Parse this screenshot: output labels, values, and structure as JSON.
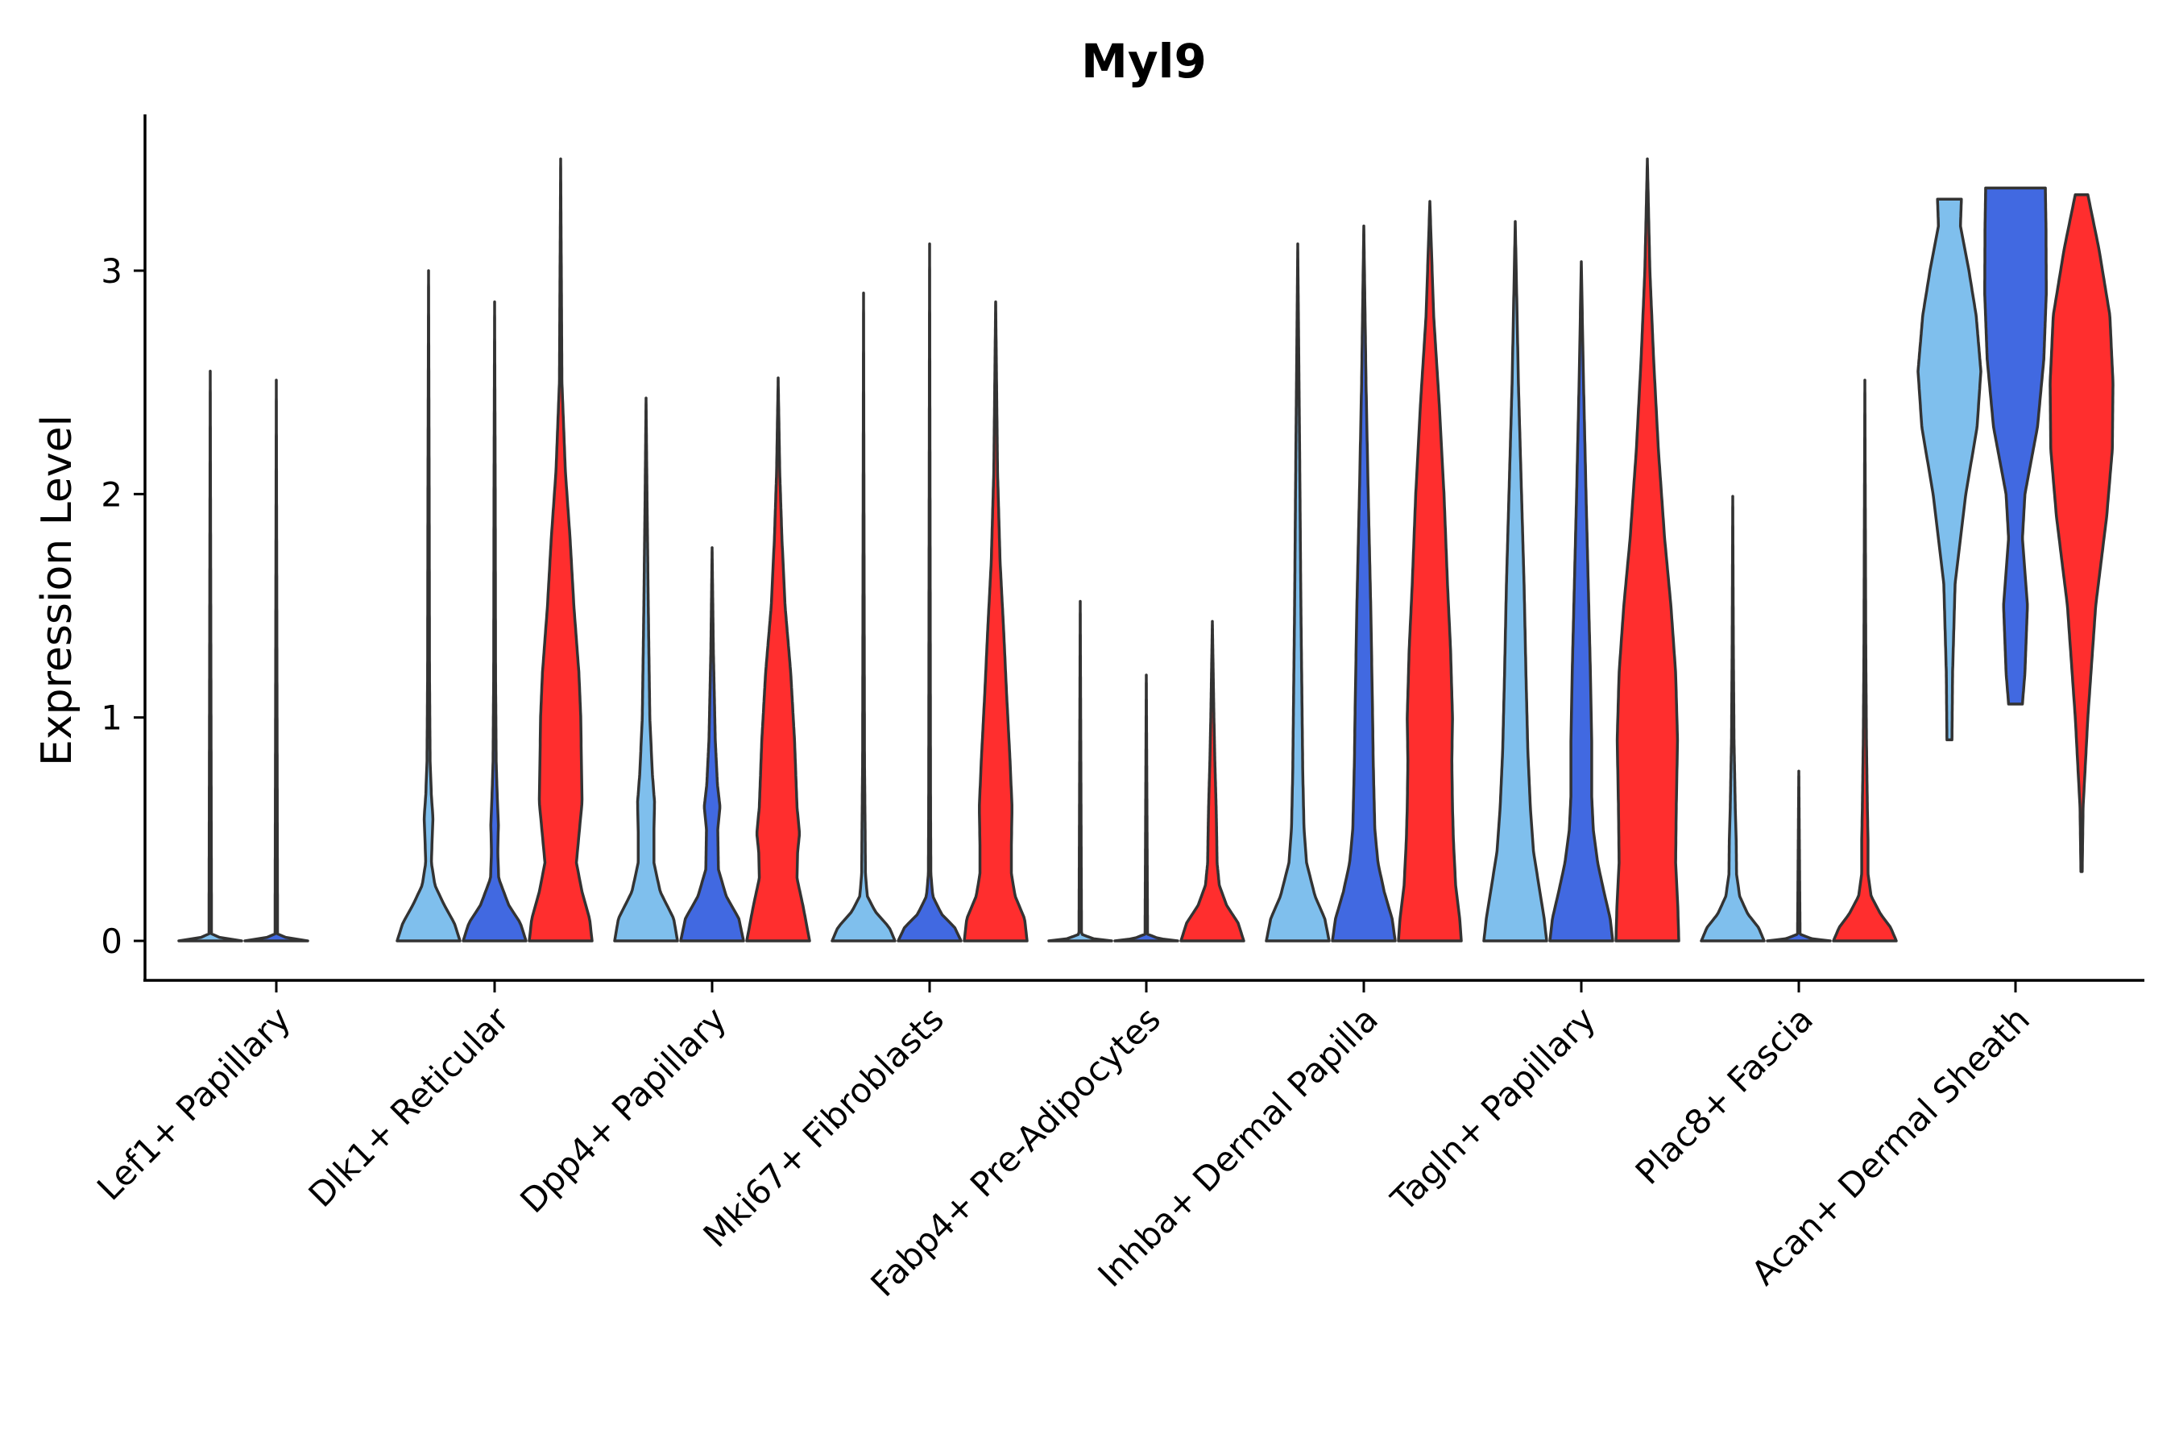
{
  "chart_data": {
    "type": "violin",
    "title": "Myl9",
    "xlabel": "",
    "ylabel": "Expression Level",
    "ylim": [
      -0.17,
      3.7
    ],
    "yticks": [
      0,
      1,
      2,
      3
    ],
    "legend": "none",
    "colors": {
      "group_a": "#7fbfed",
      "group_b": "#4169e1",
      "group_c": "#ff2e2e",
      "outline": "#333333"
    },
    "categories": [
      "Lef1+ Papillary",
      "Dlk1+ Reticular",
      "Dpp4+ Papillary",
      "Mki67+ Fibroblasts",
      "Fabp4+ Pre-Adipocytes",
      "Inhba+ Dermal Papilla",
      "Tagln+ Papillary",
      "Plac8+ Fascia",
      "Acan+ Dermal Sheath"
    ],
    "violins": [
      {
        "category": 0,
        "slot": 0,
        "color": "group_a",
        "min": 0,
        "max": 2.55,
        "profile": [
          [
            0,
            1
          ],
          [
            0.01,
            0.4
          ],
          [
            0.03,
            0.04
          ],
          [
            2.55,
            0
          ]
        ]
      },
      {
        "category": 0,
        "slot": 1,
        "color": "group_b",
        "min": 0,
        "max": 2.51,
        "profile": [
          [
            0,
            1
          ],
          [
            0.01,
            0.4
          ],
          [
            0.03,
            0.04
          ],
          [
            2.51,
            0
          ]
        ]
      },
      {
        "category": 1,
        "slot": 0,
        "color": "group_a",
        "min": 0,
        "max": 3.0,
        "profile": [
          [
            0,
            1
          ],
          [
            0.08,
            0.82
          ],
          [
            0.16,
            0.5
          ],
          [
            0.25,
            0.2
          ],
          [
            0.35,
            0.09
          ],
          [
            0.48,
            0.12
          ],
          [
            0.55,
            0.14
          ],
          [
            0.65,
            0.09
          ],
          [
            0.8,
            0.05
          ],
          [
            1.2,
            0.03
          ],
          [
            2.0,
            0.02
          ],
          [
            3.0,
            0
          ]
        ]
      },
      {
        "category": 1,
        "slot": 1,
        "color": "group_b",
        "min": 0,
        "max": 2.86,
        "profile": [
          [
            0,
            1
          ],
          [
            0.08,
            0.82
          ],
          [
            0.16,
            0.45
          ],
          [
            0.28,
            0.13
          ],
          [
            0.4,
            0.1
          ],
          [
            0.52,
            0.12
          ],
          [
            0.62,
            0.09
          ],
          [
            0.8,
            0.05
          ],
          [
            1.2,
            0.03
          ],
          [
            2.0,
            0.02
          ],
          [
            2.86,
            0
          ]
        ]
      },
      {
        "category": 1,
        "slot": 2,
        "color": "group_c",
        "min": 0,
        "max": 3.5,
        "profile": [
          [
            0,
            1
          ],
          [
            0.1,
            0.92
          ],
          [
            0.22,
            0.68
          ],
          [
            0.35,
            0.5
          ],
          [
            0.5,
            0.6
          ],
          [
            0.62,
            0.68
          ],
          [
            0.8,
            0.66
          ],
          [
            1.0,
            0.64
          ],
          [
            1.2,
            0.58
          ],
          [
            1.5,
            0.42
          ],
          [
            1.8,
            0.3
          ],
          [
            2.1,
            0.15
          ],
          [
            2.5,
            0.04
          ],
          [
            3.5,
            0
          ]
        ]
      },
      {
        "category": 2,
        "slot": 0,
        "color": "group_a",
        "min": 0,
        "max": 2.43,
        "profile": [
          [
            0,
            1
          ],
          [
            0.1,
            0.88
          ],
          [
            0.22,
            0.45
          ],
          [
            0.35,
            0.25
          ],
          [
            0.5,
            0.25
          ],
          [
            0.62,
            0.27
          ],
          [
            0.75,
            0.2
          ],
          [
            1.0,
            0.12
          ],
          [
            1.5,
            0.07
          ],
          [
            2.0,
            0.03
          ],
          [
            2.43,
            0
          ]
        ]
      },
      {
        "category": 2,
        "slot": 1,
        "color": "group_b",
        "min": 0,
        "max": 1.76,
        "profile": [
          [
            0,
            1
          ],
          [
            0.1,
            0.85
          ],
          [
            0.2,
            0.45
          ],
          [
            0.32,
            0.2
          ],
          [
            0.5,
            0.18
          ],
          [
            0.6,
            0.25
          ],
          [
            0.7,
            0.17
          ],
          [
            0.9,
            0.1
          ],
          [
            1.3,
            0.04
          ],
          [
            1.76,
            0
          ]
        ]
      },
      {
        "category": 2,
        "slot": 2,
        "color": "group_c",
        "min": 0,
        "max": 2.52,
        "profile": [
          [
            0,
            1
          ],
          [
            0.15,
            0.8
          ],
          [
            0.28,
            0.6
          ],
          [
            0.4,
            0.62
          ],
          [
            0.48,
            0.68
          ],
          [
            0.6,
            0.6
          ],
          [
            0.9,
            0.52
          ],
          [
            1.2,
            0.4
          ],
          [
            1.5,
            0.22
          ],
          [
            1.8,
            0.12
          ],
          [
            2.1,
            0.05
          ],
          [
            2.52,
            0
          ]
        ]
      },
      {
        "category": 3,
        "slot": 0,
        "color": "group_a",
        "min": 0,
        "max": 2.9,
        "profile": [
          [
            0,
            1
          ],
          [
            0.06,
            0.82
          ],
          [
            0.13,
            0.38
          ],
          [
            0.2,
            0.12
          ],
          [
            0.3,
            0.06
          ],
          [
            0.5,
            0.05
          ],
          [
            0.8,
            0.03
          ],
          [
            1.5,
            0.02
          ],
          [
            2.9,
            0
          ]
        ]
      },
      {
        "category": 3,
        "slot": 1,
        "color": "group_b",
        "min": 0,
        "max": 3.12,
        "profile": [
          [
            0,
            1
          ],
          [
            0.06,
            0.8
          ],
          [
            0.12,
            0.38
          ],
          [
            0.2,
            0.1
          ],
          [
            0.3,
            0.04
          ],
          [
            0.6,
            0.03
          ],
          [
            1.5,
            0.02
          ],
          [
            3.12,
            0
          ]
        ]
      },
      {
        "category": 3,
        "slot": 2,
        "color": "group_c",
        "min": 0,
        "max": 2.86,
        "profile": [
          [
            0,
            1
          ],
          [
            0.1,
            0.92
          ],
          [
            0.2,
            0.62
          ],
          [
            0.3,
            0.5
          ],
          [
            0.42,
            0.5
          ],
          [
            0.6,
            0.52
          ],
          [
            0.8,
            0.46
          ],
          [
            1.1,
            0.35
          ],
          [
            1.4,
            0.25
          ],
          [
            1.7,
            0.14
          ],
          [
            2.1,
            0.06
          ],
          [
            2.86,
            0
          ]
        ]
      },
      {
        "category": 4,
        "slot": 0,
        "color": "group_a",
        "min": 0,
        "max": 1.52,
        "profile": [
          [
            0,
            1
          ],
          [
            0.01,
            0.4
          ],
          [
            0.03,
            0.04
          ],
          [
            1.52,
            0
          ]
        ]
      },
      {
        "category": 4,
        "slot": 1,
        "color": "group_b",
        "min": 0,
        "max": 1.19,
        "profile": [
          [
            0,
            1
          ],
          [
            0.01,
            0.4
          ],
          [
            0.03,
            0.04
          ],
          [
            1.19,
            0
          ]
        ]
      },
      {
        "category": 4,
        "slot": 2,
        "color": "group_c",
        "min": 0,
        "max": 1.43,
        "profile": [
          [
            0,
            1
          ],
          [
            0.08,
            0.82
          ],
          [
            0.16,
            0.45
          ],
          [
            0.25,
            0.22
          ],
          [
            0.35,
            0.15
          ],
          [
            0.45,
            0.14
          ],
          [
            0.6,
            0.12
          ],
          [
            0.8,
            0.08
          ],
          [
            1.0,
            0.05
          ],
          [
            1.43,
            0
          ]
        ]
      },
      {
        "category": 5,
        "slot": 0,
        "color": "group_a",
        "min": 0,
        "max": 3.12,
        "profile": [
          [
            0,
            1
          ],
          [
            0.1,
            0.86
          ],
          [
            0.2,
            0.55
          ],
          [
            0.35,
            0.28
          ],
          [
            0.5,
            0.2
          ],
          [
            0.75,
            0.16
          ],
          [
            1.0,
            0.14
          ],
          [
            1.5,
            0.1
          ],
          [
            2.2,
            0.06
          ],
          [
            3.12,
            0
          ]
        ]
      },
      {
        "category": 5,
        "slot": 1,
        "color": "group_b",
        "min": 0,
        "max": 3.2,
        "profile": [
          [
            0,
            1
          ],
          [
            0.1,
            0.9
          ],
          [
            0.22,
            0.65
          ],
          [
            0.35,
            0.45
          ],
          [
            0.5,
            0.35
          ],
          [
            0.8,
            0.3
          ],
          [
            1.1,
            0.27
          ],
          [
            1.5,
            0.22
          ],
          [
            2.0,
            0.14
          ],
          [
            2.5,
            0.07
          ],
          [
            3.2,
            0
          ]
        ]
      },
      {
        "category": 5,
        "slot": 2,
        "color": "group_c",
        "min": 0,
        "max": 3.31,
        "profile": [
          [
            0,
            1
          ],
          [
            0.1,
            0.95
          ],
          [
            0.25,
            0.82
          ],
          [
            0.45,
            0.75
          ],
          [
            0.6,
            0.72
          ],
          [
            0.8,
            0.7
          ],
          [
            1.0,
            0.72
          ],
          [
            1.3,
            0.66
          ],
          [
            1.6,
            0.56
          ],
          [
            2.0,
            0.45
          ],
          [
            2.4,
            0.3
          ],
          [
            2.8,
            0.12
          ],
          [
            3.31,
            0
          ]
        ]
      },
      {
        "category": 6,
        "slot": 0,
        "color": "group_a",
        "min": 0,
        "max": 3.22,
        "profile": [
          [
            0,
            1
          ],
          [
            0.1,
            0.92
          ],
          [
            0.25,
            0.75
          ],
          [
            0.4,
            0.58
          ],
          [
            0.6,
            0.48
          ],
          [
            0.85,
            0.4
          ],
          [
            1.2,
            0.34
          ],
          [
            1.6,
            0.28
          ],
          [
            2.0,
            0.2
          ],
          [
            2.5,
            0.1
          ],
          [
            3.22,
            0
          ]
        ]
      },
      {
        "category": 6,
        "slot": 1,
        "color": "group_b",
        "min": 0,
        "max": 3.04,
        "profile": [
          [
            0,
            1
          ],
          [
            0.1,
            0.92
          ],
          [
            0.22,
            0.72
          ],
          [
            0.35,
            0.52
          ],
          [
            0.5,
            0.38
          ],
          [
            0.65,
            0.33
          ],
          [
            0.9,
            0.33
          ],
          [
            1.2,
            0.29
          ],
          [
            1.6,
            0.22
          ],
          [
            2.0,
            0.15
          ],
          [
            2.5,
            0.07
          ],
          [
            3.04,
            0
          ]
        ]
      },
      {
        "category": 6,
        "slot": 2,
        "color": "group_c",
        "min": 0,
        "max": 3.5,
        "profile": [
          [
            0,
            1
          ],
          [
            0.15,
            0.97
          ],
          [
            0.35,
            0.9
          ],
          [
            0.6,
            0.92
          ],
          [
            0.9,
            0.96
          ],
          [
            1.2,
            0.9
          ],
          [
            1.5,
            0.75
          ],
          [
            1.8,
            0.55
          ],
          [
            2.2,
            0.35
          ],
          [
            2.6,
            0.2
          ],
          [
            3.0,
            0.08
          ],
          [
            3.5,
            0
          ]
        ]
      },
      {
        "category": 7,
        "slot": 0,
        "color": "group_a",
        "min": 0,
        "max": 1.99,
        "profile": [
          [
            0,
            1
          ],
          [
            0.06,
            0.82
          ],
          [
            0.12,
            0.48
          ],
          [
            0.2,
            0.22
          ],
          [
            0.3,
            0.12
          ],
          [
            0.45,
            0.11
          ],
          [
            0.6,
            0.08
          ],
          [
            0.9,
            0.04
          ],
          [
            1.3,
            0.02
          ],
          [
            1.99,
            0
          ]
        ]
      },
      {
        "category": 7,
        "slot": 1,
        "color": "group_b",
        "min": 0,
        "max": 0.76,
        "profile": [
          [
            0,
            1
          ],
          [
            0.01,
            0.4
          ],
          [
            0.03,
            0.04
          ],
          [
            0.76,
            0
          ]
        ]
      },
      {
        "category": 7,
        "slot": 2,
        "color": "group_c",
        "min": 0,
        "max": 2.51,
        "profile": [
          [
            0,
            1
          ],
          [
            0.06,
            0.82
          ],
          [
            0.12,
            0.5
          ],
          [
            0.2,
            0.2
          ],
          [
            0.3,
            0.1
          ],
          [
            0.45,
            0.1
          ],
          [
            0.6,
            0.08
          ],
          [
            0.9,
            0.05
          ],
          [
            1.3,
            0.03
          ],
          [
            2.51,
            0
          ]
        ]
      },
      {
        "category": 8,
        "slot": 0,
        "color": "group_a",
        "min": 0.9,
        "max": 3.32,
        "profile": [
          [
            0.9,
            0.08
          ],
          [
            1.2,
            0.1
          ],
          [
            1.6,
            0.18
          ],
          [
            2.0,
            0.52
          ],
          [
            2.3,
            0.88
          ],
          [
            2.55,
            1.0
          ],
          [
            2.8,
            0.85
          ],
          [
            3.0,
            0.62
          ],
          [
            3.2,
            0.35
          ],
          [
            3.32,
            0.38
          ]
        ]
      },
      {
        "category": 8,
        "slot": 1,
        "color": "group_b",
        "min": 1.06,
        "max": 3.37,
        "profile": [
          [
            1.06,
            0.22
          ],
          [
            1.2,
            0.3
          ],
          [
            1.5,
            0.38
          ],
          [
            1.8,
            0.22
          ],
          [
            2.0,
            0.3
          ],
          [
            2.3,
            0.7
          ],
          [
            2.6,
            0.9
          ],
          [
            2.9,
            0.98
          ],
          [
            3.2,
            0.97
          ],
          [
            3.37,
            0.95
          ]
        ]
      },
      {
        "category": 8,
        "slot": 2,
        "color": "group_c",
        "min": 0.31,
        "max": 3.34,
        "profile": [
          [
            0.31,
            0.02
          ],
          [
            0.6,
            0.05
          ],
          [
            1.0,
            0.2
          ],
          [
            1.5,
            0.45
          ],
          [
            1.9,
            0.8
          ],
          [
            2.2,
            0.98
          ],
          [
            2.5,
            1.0
          ],
          [
            2.8,
            0.9
          ],
          [
            3.1,
            0.55
          ],
          [
            3.34,
            0.2
          ]
        ]
      }
    ]
  }
}
